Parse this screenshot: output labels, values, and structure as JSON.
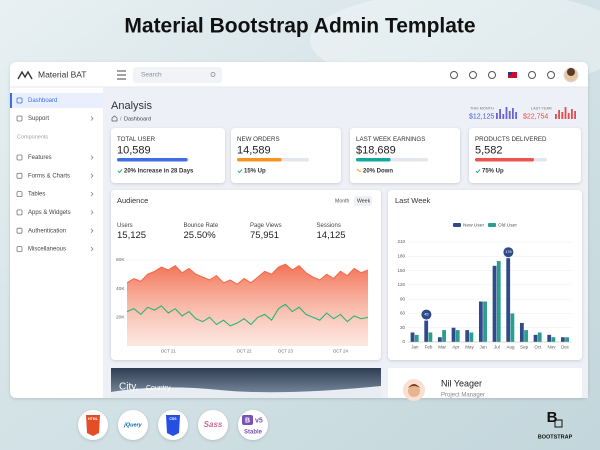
{
  "banner": {
    "title": "Material Bootstrap Admin Template"
  },
  "topbar": {
    "brand": "Material BAT",
    "search": "Search"
  },
  "sidebar": {
    "main": [
      "Dashboard",
      "Support"
    ],
    "section_title": "Components",
    "components": [
      "Features",
      "Forms & Charts",
      "Tables",
      "Apps & Widgets",
      "Authentication",
      "Miscellaneous"
    ]
  },
  "page_header": {
    "title": "Analysis",
    "separator": "/",
    "breadcrumb": "Dashboard",
    "this_month_label": "THIS MONTH",
    "this_month_value": "$12,125",
    "last_year_label": "LAST YEAR",
    "last_year_value": "$22,754"
  },
  "stat_cards": [
    {
      "label": "TOTAL USER",
      "value": "10,589",
      "note": "20% Increase in 28 Days"
    },
    {
      "label": "NEW ORDERS",
      "value": "14,589",
      "note": "15% Up"
    },
    {
      "label": "LAST WEEK EARNINGS",
      "value": "$18,689",
      "note": "20% Down"
    },
    {
      "label": "PRODUCTS DELIVERED",
      "value": "5,582",
      "note": "75% Up"
    }
  ],
  "audience": {
    "title": "Audience",
    "toggles": [
      "Month",
      "Week"
    ],
    "stats": [
      {
        "label": "Users",
        "value": "15,125"
      },
      {
        "label": "Bounce Rate",
        "value": "25.50%"
      },
      {
        "label": "Page Views",
        "value": "75,951"
      },
      {
        "label": "Sessions",
        "value": "14,125"
      }
    ],
    "chart": {
      "type": "area",
      "categories": [
        null,
        null,
        null,
        null,
        null,
        null,
        "OCT 21",
        null,
        null,
        null,
        null,
        null,
        null,
        null,
        null,
        null,
        null,
        "OCT 22",
        null,
        null,
        null,
        null,
        null,
        "OCT 23",
        null,
        null,
        null,
        null,
        null,
        null,
        null,
        "OCT 24",
        null,
        null,
        null,
        null
      ],
      "series": [
        {
          "color": "#f26a4b",
          "values": [
            44000,
            47000,
            45000,
            50000,
            52000,
            55000,
            53000,
            56000,
            51000,
            54000,
            50000,
            48000,
            46000,
            49000,
            44000,
            46000,
            43000,
            47000,
            44000,
            48000,
            52000,
            50000,
            55000,
            57000,
            53000,
            56000,
            51000,
            48000,
            46000,
            50000,
            47000,
            52000,
            49000,
            54000,
            51000,
            53000
          ]
        },
        {
          "color": "#2bb673",
          "values": [
            24000,
            26000,
            22000,
            27000,
            25000,
            28000,
            23000,
            26000,
            21000,
            24000,
            19000,
            17000,
            20000,
            15000,
            18000,
            14000,
            16000,
            19000,
            15000,
            20000,
            22000,
            18000,
            26000,
            29000,
            24000,
            27000,
            22000,
            20000,
            18000,
            23000,
            19000,
            22000,
            17000,
            21000,
            19000,
            20000
          ]
        }
      ],
      "ylim": [
        0,
        63000
      ],
      "yticks": [
        {
          "value": 20000,
          "label": "20K"
        },
        {
          "value": 40000,
          "label": "40K"
        },
        {
          "value": 60000,
          "label": "60K"
        }
      ]
    }
  },
  "last_week": {
    "title": "Last Week",
    "chart": {
      "type": "bar",
      "categories": [
        "Jan",
        "Feb",
        "Mar",
        "Apr",
        "May",
        "Jun",
        "Jul",
        "Aug",
        "Sep",
        "Oct",
        "Nov",
        "Dec"
      ],
      "series": [
        {
          "name": "New User",
          "color": "#2f4b8a",
          "values": [
            20,
            45,
            10,
            30,
            25,
            85,
            160,
            176,
            40,
            15,
            15,
            10
          ],
          "value_labels": [
            null,
            "45",
            null,
            null,
            null,
            null,
            null,
            "176",
            null,
            null,
            null,
            null
          ]
        },
        {
          "name": "Old User",
          "color": "#2a9d8f",
          "values": [
            15,
            20,
            25,
            25,
            20,
            85,
            170,
            60,
            25,
            20,
            10,
            10
          ]
        }
      ],
      "ylim": [
        0,
        210
      ],
      "yticks": [
        0,
        30,
        60,
        90,
        120,
        150,
        180,
        210
      ]
    }
  },
  "city_card": {
    "title": "City,",
    "subtitle": "Country"
  },
  "profile": {
    "name": "Nil Yeager",
    "role": "Project Manager"
  },
  "footer": {
    "badges": [
      "HTML",
      "jQuery",
      "CSS",
      "Sass"
    ],
    "bootstrap_badge": {
      "letter": "B",
      "version": "v5",
      "status": "Stable"
    },
    "logo": {
      "letter": "B",
      "text": "BOOTSTRAP"
    }
  }
}
